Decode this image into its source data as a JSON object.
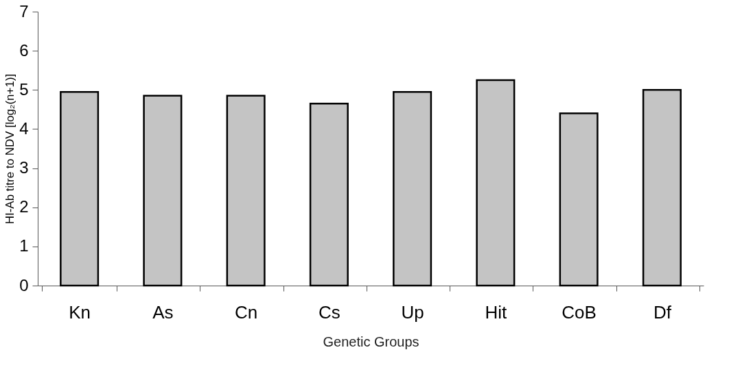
{
  "chart_data": {
    "type": "bar",
    "xlabel": "Genetic Groups",
    "ylabel": "HI-Ab titre to NDV [log₂(n+1)]",
    "categories": [
      "Kn",
      "As",
      "Cn",
      "Cs",
      "Up",
      "Hit",
      "CoB",
      "Df"
    ],
    "values": [
      4.95,
      4.85,
      4.85,
      4.65,
      4.95,
      5.25,
      4.4,
      5.0
    ],
    "color": "#c4c4c4",
    "ylim": [
      0,
      7
    ],
    "yticks": [
      0,
      1,
      2,
      3,
      4,
      5,
      6,
      7
    ],
    "grid": false
  }
}
